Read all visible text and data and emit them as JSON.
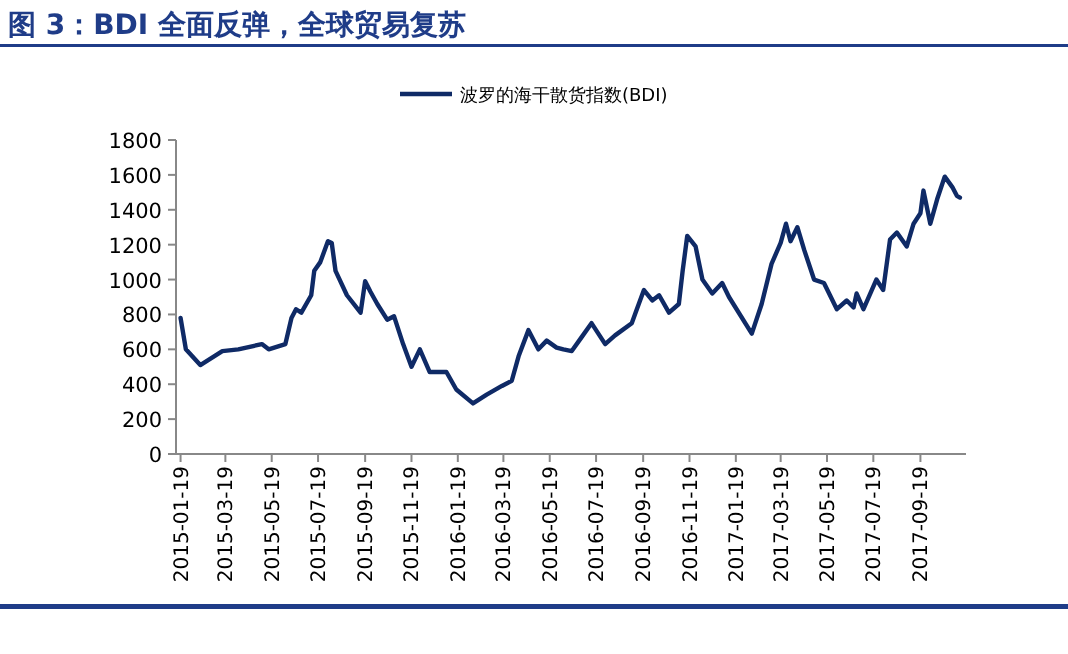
{
  "chart_data": {
    "type": "line",
    "title": "图 3：BDI 全面反弹，全球贸易复苏",
    "legend": "top",
    "xlim": [
      "2015-01-13",
      "2017-11-18"
    ],
    "ylim": [
      0,
      1800
    ],
    "yticks": [
      0,
      200,
      400,
      600,
      800,
      1000,
      1200,
      1400,
      1600,
      1800
    ],
    "xticks": [
      "2015-01-19",
      "2015-03-19",
      "2015-05-19",
      "2015-07-19",
      "2015-09-19",
      "2015-11-19",
      "2016-01-19",
      "2016-03-19",
      "2016-05-19",
      "2016-07-19",
      "2016-09-19",
      "2016-11-19",
      "2017-01-19",
      "2017-03-19",
      "2017-05-19",
      "2017-07-19",
      "2017-09-19"
    ],
    "series": [
      {
        "name": "波罗的海干散货指数(BDI)",
        "color": "#0f2a66",
        "x": [
          "2015-01-19",
          "2015-01-26",
          "2015-02-14",
          "2015-03-15",
          "2015-04-05",
          "2015-05-06",
          "2015-05-15",
          "2015-06-06",
          "2015-06-14",
          "2015-06-20",
          "2015-06-27",
          "2015-07-10",
          "2015-07-14",
          "2015-07-22",
          "2015-08-01",
          "2015-08-06",
          "2015-08-11",
          "2015-08-26",
          "2015-09-13",
          "2015-09-19",
          "2015-09-26",
          "2015-10-05",
          "2015-10-18",
          "2015-10-27",
          "2015-11-08",
          "2015-11-19",
          "2015-11-30",
          "2015-12-13",
          "2016-01-04",
          "2016-01-17",
          "2016-02-08",
          "2016-02-26",
          "2016-03-17",
          "2016-03-30",
          "2016-04-08",
          "2016-04-21",
          "2016-05-04",
          "2016-05-15",
          "2016-05-28",
          "2016-06-06",
          "2016-06-17",
          "2016-06-30",
          "2016-07-13",
          "2016-07-31",
          "2016-08-13",
          "2016-09-04",
          "2016-09-09",
          "2016-09-20",
          "2016-10-01",
          "2016-10-10",
          "2016-10-23",
          "2016-11-05",
          "2016-11-10",
          "2016-11-16",
          "2016-11-27",
          "2016-12-06",
          "2016-12-19",
          "2017-01-01",
          "2017-01-10",
          "2017-02-09",
          "2017-02-22",
          "2017-03-07",
          "2017-03-19",
          "2017-03-26",
          "2017-04-01",
          "2017-04-10",
          "2017-04-19",
          "2017-05-02",
          "2017-05-15",
          "2017-06-01",
          "2017-06-14",
          "2017-06-23",
          "2017-06-27",
          "2017-07-06",
          "2017-07-23",
          "2017-08-01",
          "2017-08-10",
          "2017-08-19",
          "2017-09-01",
          "2017-09-10",
          "2017-09-19",
          "2017-09-23",
          "2017-10-02",
          "2017-10-11",
          "2017-10-21",
          "2017-10-31",
          "2017-11-06",
          "2017-11-10"
        ],
        "values": [
          780,
          600,
          510,
          590,
          600,
          630,
          600,
          630,
          780,
          830,
          810,
          910,
          1050,
          1100,
          1220,
          1210,
          1050,
          910,
          810,
          990,
          930,
          860,
          770,
          790,
          630,
          500,
          600,
          470,
          470,
          370,
          290,
          340,
          390,
          420,
          560,
          710,
          600,
          650,
          610,
          600,
          590,
          670,
          750,
          630,
          680,
          750,
          810,
          940,
          880,
          910,
          810,
          860,
          1050,
          1250,
          1190,
          1000,
          920,
          980,
          900,
          690,
          860,
          1090,
          1210,
          1320,
          1220,
          1300,
          1170,
          1000,
          980,
          830,
          880,
          840,
          920,
          830,
          1000,
          940,
          1230,
          1270,
          1190,
          1320,
          1380,
          1510,
          1320,
          1460,
          1590,
          1530,
          1480,
          1470
        ]
      }
    ]
  }
}
